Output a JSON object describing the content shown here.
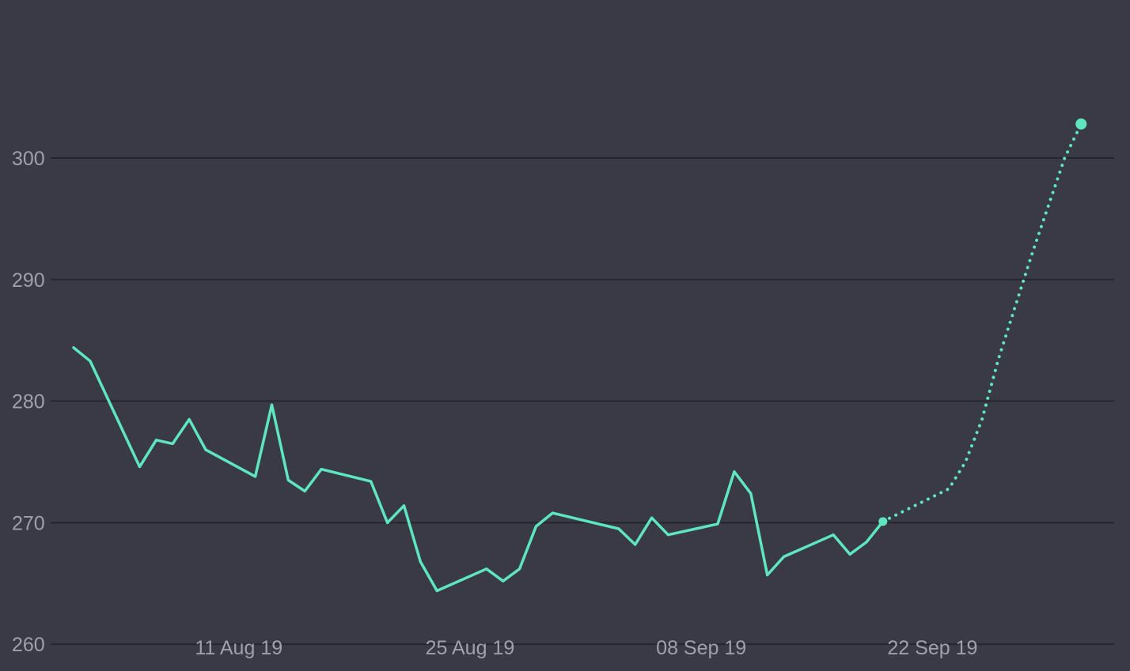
{
  "chart_data": {
    "type": "line",
    "title": "",
    "xlabel": "",
    "ylabel": "",
    "ylim": [
      257.8,
      313
    ],
    "xlim": [
      "2019-08-01",
      "2019-10-03"
    ],
    "y_ticks": [
      260,
      270,
      280,
      290,
      300
    ],
    "x_ticks": [
      {
        "date": "2019-08-11",
        "label": "11 Aug 19"
      },
      {
        "date": "2019-08-25",
        "label": "25 Aug 19"
      },
      {
        "date": "2019-09-08",
        "label": "08 Sep 19"
      },
      {
        "date": "2019-09-22",
        "label": "22 Sep 19"
      }
    ],
    "grid": true,
    "legend": "none",
    "colors": {
      "background": "#393a45",
      "line": "#5ee6be",
      "grid": "#26272e",
      "tick": "#9fa0ab"
    },
    "series": [
      {
        "style": "solid",
        "points": [
          [
            "2019-08-01",
            284.4
          ],
          [
            "2019-08-02",
            283.3
          ],
          [
            "2019-08-05",
            274.6
          ],
          [
            "2019-08-06",
            276.8
          ],
          [
            "2019-08-07",
            276.5
          ],
          [
            "2019-08-08",
            278.5
          ],
          [
            "2019-08-09",
            276.0
          ],
          [
            "2019-08-12",
            273.8
          ],
          [
            "2019-08-13",
            279.7
          ],
          [
            "2019-08-14",
            273.5
          ],
          [
            "2019-08-15",
            272.6
          ],
          [
            "2019-08-16",
            274.4
          ],
          [
            "2019-08-19",
            273.4
          ],
          [
            "2019-08-20",
            270.0
          ],
          [
            "2019-08-21",
            271.4
          ],
          [
            "2019-08-22",
            266.8
          ],
          [
            "2019-08-23",
            264.4
          ],
          [
            "2019-08-26",
            266.2
          ],
          [
            "2019-08-27",
            265.2
          ],
          [
            "2019-08-28",
            266.2
          ],
          [
            "2019-08-29",
            269.7
          ],
          [
            "2019-08-30",
            270.8
          ],
          [
            "2019-09-03",
            269.5
          ],
          [
            "2019-09-04",
            268.2
          ],
          [
            "2019-09-05",
            270.4
          ],
          [
            "2019-09-06",
            269.0
          ],
          [
            "2019-09-09",
            269.9
          ],
          [
            "2019-09-10",
            274.2
          ],
          [
            "2019-09-11",
            272.4
          ],
          [
            "2019-09-12",
            265.7
          ],
          [
            "2019-09-13",
            267.2
          ],
          [
            "2019-09-16",
            269.0
          ],
          [
            "2019-09-17",
            267.4
          ],
          [
            "2019-09-18",
            268.4
          ],
          [
            "2019-09-19",
            270.1
          ]
        ]
      },
      {
        "style": "dotted",
        "points": [
          [
            "2019-09-19",
            270.1
          ],
          [
            "2019-09-23",
            272.8
          ],
          [
            "2019-09-24",
            275.0
          ],
          [
            "2019-09-25",
            278.5
          ],
          [
            "2019-09-26",
            283.5
          ],
          [
            "2019-09-28",
            292.0
          ],
          [
            "2019-09-29",
            296.0
          ],
          [
            "2019-09-30",
            300.0
          ],
          [
            "2019-10-01",
            302.8
          ]
        ]
      }
    ],
    "markers": [
      {
        "date": "2019-09-19",
        "value": 270.1
      },
      {
        "date": "2019-10-01",
        "value": 302.8
      }
    ]
  }
}
